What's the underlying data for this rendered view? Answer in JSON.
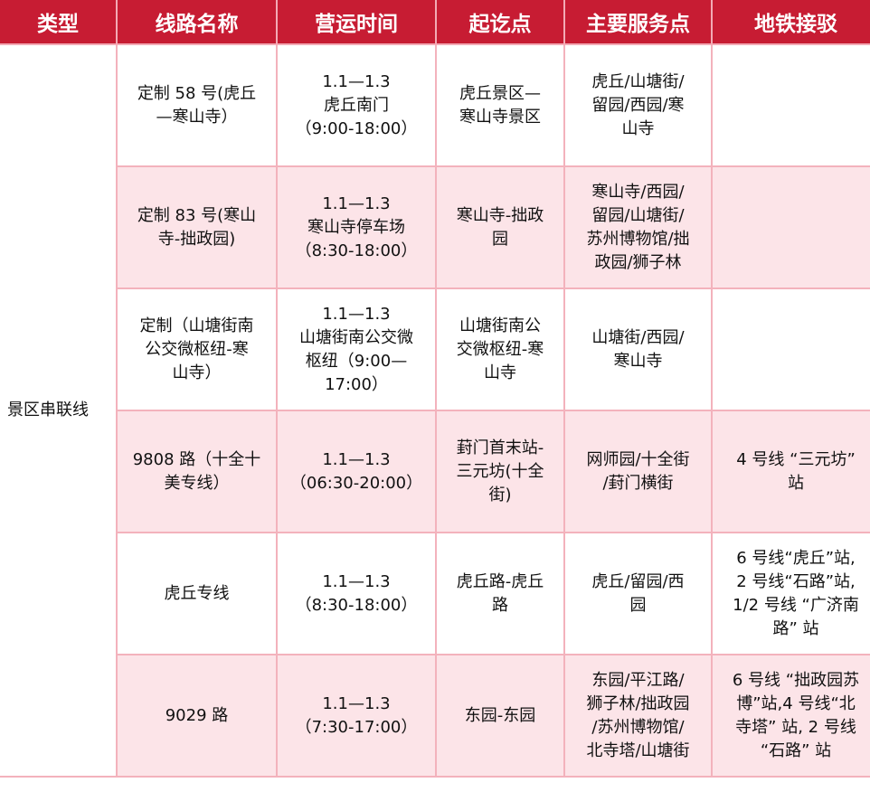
{
  "headers": [
    "类型",
    "线路名称",
    "营运时间",
    "起讫点",
    "主要服务点",
    "地铁接驳"
  ],
  "type_label": "景区串联线",
  "rows": [
    [
      "定制 58 号(虎丘\n—寒山寺）",
      "1.1—1.3\n虎丘南门\n（9:00-18:00）",
      "虎丘景区—\n寒山寺景区",
      "虎丘/山塘街/\n留园/西园/寒\n山寺",
      ""
    ],
    [
      "定制 83 号(寒山\n寺-拙政园)",
      "1.1—1.3\n寒山寺停车场\n（8:30-18:00）",
      "寒山寺-拙政\n园",
      "寒山寺/西园/\n留园/山塘街/\n苏州博物馆/拙\n政园/狮子林",
      ""
    ],
    [
      "定制（山塘街南\n公交微枢纽-寒\n山寺）",
      "1.1—1.3\n山塘街南公交微\n枢纽（9:00—\n17:00）",
      "山塘街南公\n交微枢纽-寒\n山寺",
      "山塘街/西园/\n寒山寺",
      ""
    ],
    [
      "9808 路（十全十\n美专线）",
      "1.1—1.3\n（06:30-20:00）",
      "葑门首末站-\n三元坊(十全\n街)",
      "网师园/十全街\n/葑门横街",
      "4 号线 “三元坊”\n站"
    ],
    [
      "虎丘专线",
      "1.1—1.3\n（8:30-18:00）",
      "虎丘路-虎丘\n路",
      "虎丘/留园/西\n园",
      "6 号线“虎丘”站,\n2 号线“石路”站,\n1/2 号线 “广济南\n路” 站"
    ],
    [
      "9029 路",
      "1.1—1.3\n（7:30-17:00）",
      "东园-东园",
      "东园/平江路/\n狮子林/拙政园\n/苏州博物馆/\n北寺塔/山塘街",
      "6 号线 “拙政园苏\n博”站,4 号线“北\n寺塔” 站, 2 号线\n“石路” 站"
    ]
  ],
  "colors": {
    "header": "#c71c33",
    "row_alt": "#fce4e8",
    "border": "#f3b2bc"
  }
}
